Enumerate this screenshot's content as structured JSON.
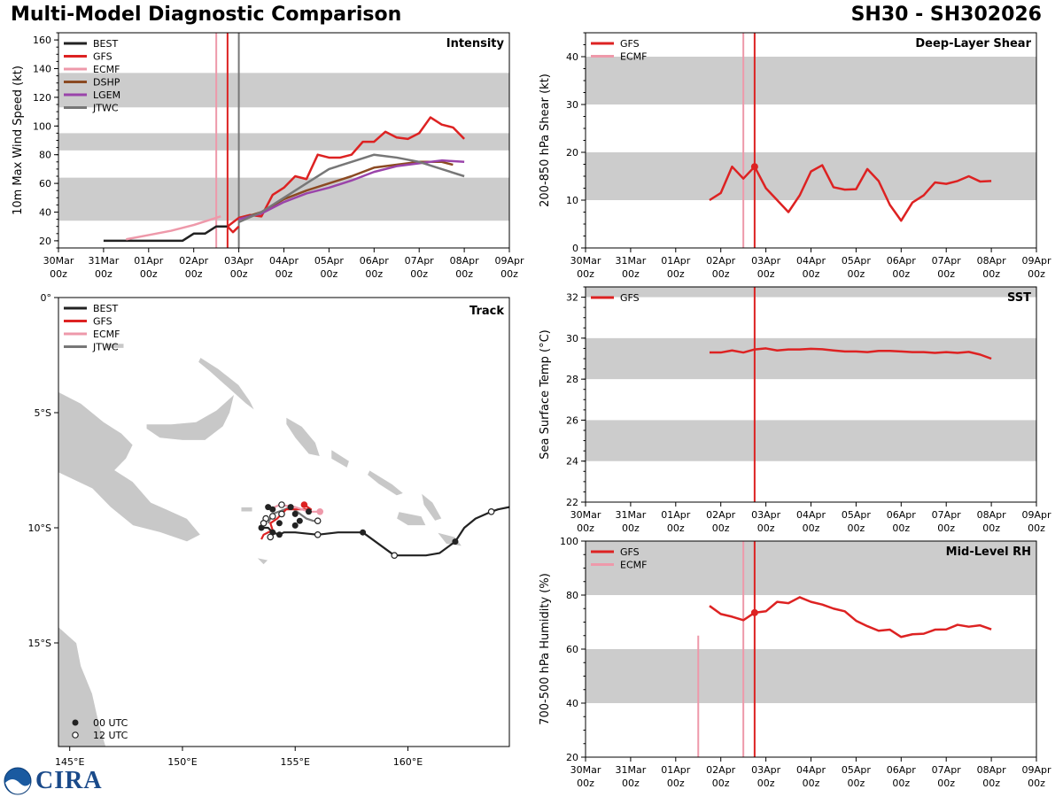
{
  "header": {
    "title": "Multi-Model Diagnostic Comparison",
    "storm_id": "SH30 - SH302026"
  },
  "colors": {
    "BEST": "#222222",
    "GFS": "#dd2222",
    "ECMF": "#ee99aa",
    "DSHP": "#8b4a22",
    "LGEM": "#9a44aa",
    "JTWC": "#777777",
    "band": "#cccccc",
    "land": "#c8c8c8"
  },
  "time_axis": {
    "labels": [
      [
        "30Mar",
        "00z"
      ],
      [
        "31Mar",
        "00z"
      ],
      [
        "01Apr",
        "00z"
      ],
      [
        "02Apr",
        "00z"
      ],
      [
        "03Apr",
        "00z"
      ],
      [
        "04Apr",
        "00z"
      ],
      [
        "05Apr",
        "00z"
      ],
      [
        "06Apr",
        "00z"
      ],
      [
        "07Apr",
        "00z"
      ],
      [
        "08Apr",
        "00z"
      ],
      [
        "09Apr",
        "00z"
      ]
    ]
  },
  "logo": {
    "text": "CIRA"
  },
  "chart_data": [
    {
      "id": "intensity",
      "type": "line",
      "panel_label": "Intensity",
      "ylabel": "10m Max Wind Speed (kt)",
      "xlim_days": [
        0,
        10
      ],
      "ylim": [
        15,
        165
      ],
      "yticks": [
        20,
        40,
        60,
        80,
        100,
        120,
        140,
        160
      ],
      "bands": [
        [
          34,
          64
        ],
        [
          83,
          95
        ],
        [
          113,
          137
        ]
      ],
      "legend": [
        "BEST",
        "GFS",
        "ECMF",
        "DSHP",
        "LGEM",
        "JTWC"
      ],
      "vlines": [
        {
          "x": 3.5,
          "series": "ECMF"
        },
        {
          "x": 3.75,
          "series": "GFS"
        },
        {
          "x": 4.0,
          "series": "JTWC"
        }
      ],
      "series": [
        {
          "name": "BEST",
          "x": [
            1.0,
            1.5,
            2.0,
            2.5,
            2.75,
            3.0,
            3.25,
            3.5,
            3.75
          ],
          "y": [
            20,
            20,
            20,
            20,
            20,
            25,
            25,
            30,
            30
          ]
        },
        {
          "name": "GFS",
          "x": [
            3.75,
            4.0,
            4.25,
            4.5,
            4.75,
            5.0,
            5.25,
            5.5,
            5.75,
            6.0,
            6.25,
            6.5,
            6.75,
            7.0,
            7.25,
            7.5,
            7.75,
            8.0,
            8.25,
            8.5,
            8.75,
            9.0
          ],
          "y": [
            30,
            36,
            38,
            37,
            52,
            57,
            65,
            63,
            80,
            78,
            78,
            80,
            89,
            89,
            96,
            92,
            91,
            95,
            106,
            101,
            99,
            91
          ]
        },
        {
          "name": "GFS",
          "x": [
            3.75,
            3.87,
            4.0
          ],
          "y": [
            30,
            26,
            30
          ]
        },
        {
          "name": "ECMF",
          "x": [
            1.5,
            2.0,
            2.5,
            3.0,
            3.5,
            3.6
          ],
          "y": [
            21,
            24,
            27,
            31,
            36,
            37
          ]
        },
        {
          "name": "DSHP",
          "x": [
            4.0,
            4.5,
            5.0,
            5.5,
            6.0,
            6.5,
            7.0,
            7.5,
            8.0,
            8.5,
            8.75
          ],
          "y": [
            35,
            40,
            49,
            55,
            60,
            65,
            71,
            73,
            75,
            75,
            73
          ]
        },
        {
          "name": "LGEM",
          "x": [
            4.0,
            4.5,
            5.0,
            5.5,
            6.0,
            6.5,
            7.0,
            7.5,
            8.0,
            8.5,
            9.0
          ],
          "y": [
            35,
            39,
            47,
            53,
            57,
            62,
            68,
            72,
            74,
            76,
            75
          ]
        },
        {
          "name": "JTWC",
          "x": [
            4.0,
            4.5,
            5.0,
            5.5,
            6.0,
            6.5,
            7.0,
            7.5,
            8.0,
            8.5,
            9.0
          ],
          "y": [
            33,
            40,
            50,
            60,
            70,
            75,
            80,
            78,
            75,
            70,
            65
          ]
        }
      ]
    },
    {
      "id": "shear",
      "type": "line",
      "panel_label": "Deep-Layer Shear",
      "ylabel": "200-850 hPa Shear (kt)",
      "xlim_days": [
        0,
        10
      ],
      "ylim": [
        0,
        45
      ],
      "yticks": [
        0,
        10,
        20,
        30,
        40
      ],
      "bands": [
        [
          10,
          20
        ],
        [
          30,
          40
        ]
      ],
      "legend": [
        "GFS",
        "ECMF"
      ],
      "vlines": [
        {
          "x": 3.5,
          "series": "ECMF"
        },
        {
          "x": 3.75,
          "series": "GFS"
        }
      ],
      "markers": [
        {
          "series": "GFS",
          "x": 3.75,
          "y": 17
        }
      ],
      "series": [
        {
          "name": "GFS",
          "x": [
            3.75,
            4.0,
            4.25,
            4.5,
            4.75,
            5.0,
            5.25,
            5.5,
            5.75,
            6.0,
            6.25,
            6.5,
            6.75,
            7.0,
            7.25,
            7.5,
            7.75,
            8.0,
            8.25,
            8.5,
            8.75,
            9.0
          ],
          "y": [
            17,
            12.5,
            10,
            7.5,
            11,
            16,
            17.3,
            12.7,
            12.2,
            12.3,
            16.5,
            14,
            9,
            5.7,
            9.5,
            11,
            13.7,
            13.4,
            14,
            15,
            13.9,
            14
          ]
        },
        {
          "name": "GFS",
          "x": [
            2.75,
            3.0,
            3.25,
            3.5,
            3.75
          ],
          "y": [
            10,
            11.5,
            17,
            14.5,
            17
          ]
        }
      ]
    },
    {
      "id": "track",
      "type": "scatter",
      "panel_label": "Track",
      "lon_range": [
        144.5,
        164.5
      ],
      "lat_range": [
        0,
        -19.5
      ],
      "xticks": [
        "145°E",
        "150°E",
        "155°E",
        "160°E"
      ],
      "yticks": [
        "0°",
        "5°S",
        "10°S",
        "15°S"
      ],
      "legend": [
        "BEST",
        "GFS",
        "ECMF",
        "JTWC"
      ],
      "marker_legend": [
        "00 UTC",
        "12 UTC"
      ],
      "series": [
        {
          "name": "BEST",
          "lon": [
            164.5,
            164.0,
            163.7,
            163.0,
            162.5,
            162.1,
            161.4,
            160.8,
            159.4,
            158.7,
            158.0,
            157.3,
            156.9,
            156.0,
            155.0,
            154.5,
            154.3,
            154.0,
            153.8,
            153.5
          ],
          "lat": [
            -9.1,
            -9.2,
            -9.3,
            -9.6,
            -10.0,
            -10.6,
            -11.1,
            -11.2,
            -11.2,
            -10.7,
            -10.2,
            -10.2,
            -10.2,
            -10.3,
            -10.2,
            -10.2,
            -10.3,
            -10.2,
            -10.0,
            -10.0
          ]
        },
        {
          "name": "JTWC",
          "lon": [
            156.0,
            155.8,
            155.5,
            154.8,
            154.0,
            153.8
          ],
          "lat": [
            -9.7,
            -9.7,
            -9.6,
            -9.1,
            -9.4,
            -9.8
          ]
        },
        {
          "name": "GFS",
          "lon": [
            155.4,
            155.7,
            155.2,
            154.6,
            154.2,
            153.9,
            154.0,
            153.6,
            153.5
          ],
          "lat": [
            -9.0,
            -9.2,
            -9.2,
            -9.2,
            -9.6,
            -9.8,
            -10.1,
            -10.3,
            -10.5
          ]
        },
        {
          "name": "ECMF",
          "lon": [
            156.1,
            155.6,
            155.0,
            154.3,
            153.9
          ],
          "lat": [
            -9.3,
            -9.3,
            -9.1,
            -9.0,
            -9.2
          ]
        }
      ],
      "points_00": [
        [
          162.1,
          -10.6
        ],
        [
          158.0,
          -10.2
        ],
        [
          154.0,
          -10.2
        ],
        [
          154.3,
          -10.3
        ],
        [
          155.0,
          -9.9
        ],
        [
          155.2,
          -9.7
        ],
        [
          155.6,
          -9.3
        ],
        [
          155.0,
          -9.4
        ],
        [
          154.0,
          -9.2
        ],
        [
          153.8,
          -9.1
        ],
        [
          153.5,
          -10.0
        ],
        [
          155.4,
          -9.0
        ],
        [
          154.8,
          -9.1
        ],
        [
          154.3,
          -9.8
        ]
      ],
      "points_12": [
        [
          163.7,
          -9.3
        ],
        [
          159.4,
          -11.2
        ],
        [
          156.0,
          -10.3
        ],
        [
          153.9,
          -10.4
        ],
        [
          153.7,
          -9.6
        ],
        [
          154.0,
          -9.5
        ],
        [
          154.4,
          -9.4
        ],
        [
          154.4,
          -9.0
        ],
        [
          156.0,
          -9.7
        ],
        [
          153.6,
          -9.8
        ]
      ]
    },
    {
      "id": "sst",
      "type": "line",
      "panel_label": "SST",
      "ylabel": "Sea Surface Temp (°C)",
      "xlim_days": [
        0,
        10
      ],
      "ylim": [
        22,
        32.5
      ],
      "yticks": [
        22,
        24,
        26,
        28,
        30,
        32
      ],
      "bands": [
        [
          24,
          26
        ],
        [
          28,
          30
        ],
        [
          32,
          32.5
        ]
      ],
      "legend": [
        "GFS"
      ],
      "vlines": [
        {
          "x": 3.75,
          "series": "GFS"
        }
      ],
      "series": [
        {
          "name": "GFS",
          "x": [
            2.75,
            3.0,
            3.25,
            3.5,
            3.75,
            4.0,
            4.25,
            4.5,
            4.75,
            5.0,
            5.25,
            5.5,
            5.75,
            6.0,
            6.25,
            6.5,
            6.75,
            7.0,
            7.25,
            7.5,
            7.75,
            8.0,
            8.25,
            8.5,
            8.75,
            9.0
          ],
          "y": [
            29.3,
            29.3,
            29.4,
            29.3,
            29.45,
            29.5,
            29.4,
            29.45,
            29.45,
            29.48,
            29.46,
            29.4,
            29.35,
            29.35,
            29.32,
            29.38,
            29.38,
            29.35,
            29.32,
            29.32,
            29.28,
            29.32,
            29.28,
            29.33,
            29.2,
            29.0
          ]
        }
      ]
    },
    {
      "id": "rh",
      "type": "line",
      "panel_label": "Mid-Level RH",
      "ylabel": "700-500 hPa Humidity (%)",
      "xlim_days": [
        0,
        10
      ],
      "ylim": [
        20,
        100
      ],
      "yticks": [
        20,
        40,
        60,
        80,
        100
      ],
      "bands": [
        [
          40,
          60
        ],
        [
          80,
          100
        ]
      ],
      "legend": [
        "GFS",
        "ECMF"
      ],
      "vlines": [
        {
          "x": 3.5,
          "series": "ECMF"
        },
        {
          "x": 3.75,
          "series": "GFS"
        }
      ],
      "partial_vlines": [
        {
          "x": 2.5,
          "series": "ECMF",
          "ymax": 65
        }
      ],
      "markers": [
        {
          "series": "GFS",
          "x": 3.75,
          "y": 73.5
        }
      ],
      "series": [
        {
          "name": "GFS",
          "x": [
            2.75,
            3.0,
            3.25,
            3.5,
            3.75,
            4.0,
            4.25,
            4.5,
            4.75,
            5.0,
            5.25,
            5.5,
            5.75,
            6.0,
            6.25,
            6.5,
            6.75,
            7.0,
            7.25,
            7.5,
            7.75,
            8.0,
            8.25,
            8.5,
            8.75,
            9.0
          ],
          "y": [
            76,
            73,
            72,
            70.7,
            73.5,
            74,
            77.5,
            77,
            79.2,
            77.5,
            76.5,
            75,
            74,
            70.5,
            68.5,
            66.8,
            67.2,
            64.5,
            65.5,
            65.7,
            67.2,
            67.3,
            69,
            68.3,
            68.8,
            67.3
          ]
        }
      ]
    }
  ]
}
